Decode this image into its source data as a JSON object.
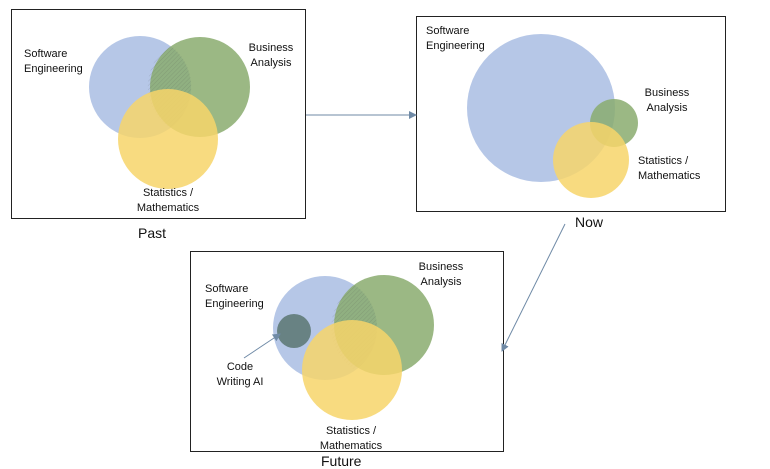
{
  "panels": {
    "past": {
      "title": "Past",
      "software_label": [
        "Software",
        "Engineering"
      ],
      "business_label": [
        "Business",
        "Analysis"
      ],
      "stats_label": [
        "Statistics /",
        "Mathematics"
      ]
    },
    "now": {
      "title": "Now",
      "software_label": [
        "Software",
        "Engineering"
      ],
      "business_label": [
        "Business",
        "Analysis"
      ],
      "stats_label": [
        "Statistics /",
        "Mathematics"
      ]
    },
    "future": {
      "title": "Future",
      "software_label": [
        "Software",
        "Engineering"
      ],
      "business_label": [
        "Business",
        "Analysis"
      ],
      "stats_label": [
        "Statistics /",
        "Mathematics"
      ],
      "ai_label": [
        "Code",
        "Writing AI"
      ]
    }
  },
  "colors": {
    "software": "#a9bde3",
    "business": "#8aab6f",
    "stats": "#f7d56a",
    "ai": "#5f7a78",
    "arrow": "#6f8aa6"
  }
}
